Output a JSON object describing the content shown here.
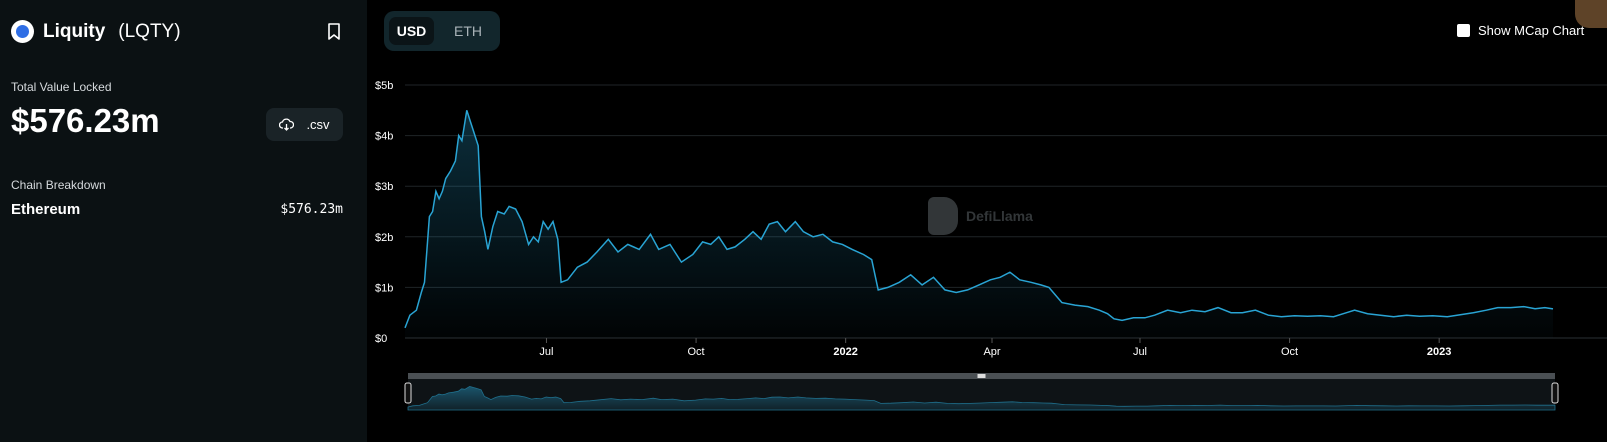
{
  "protocol": {
    "name": "Liquity",
    "symbol": "(LQTY)"
  },
  "tvl": {
    "label": "Total Value Locked",
    "value": "$576.23m"
  },
  "csv_button": {
    "label": ".csv"
  },
  "chain_breakdown": {
    "label": "Chain Breakdown",
    "items": [
      {
        "name": "Ethereum",
        "value": "$576.23m"
      }
    ]
  },
  "currency_toggle": {
    "options": [
      "USD",
      "ETH"
    ],
    "selected": "USD"
  },
  "mcap_toggle": {
    "label": "Show MCap Chart",
    "checked": false
  },
  "watermark": {
    "text": "DefiLlama"
  },
  "colors": {
    "line": "#29a4d4",
    "sidebar_bg": "#0b1113",
    "page_bg": "#000000"
  },
  "chart_data": {
    "type": "area",
    "series": [
      {
        "points": [
          [
            "2021-04-05",
            0.2
          ],
          [
            "2021-04-08",
            0.45
          ],
          [
            "2021-04-12",
            0.55
          ],
          [
            "2021-04-15",
            0.9
          ],
          [
            "2021-04-17",
            1.1
          ],
          [
            "2021-04-20",
            2.4
          ],
          [
            "2021-04-22",
            2.5
          ],
          [
            "2021-04-24",
            2.9
          ],
          [
            "2021-04-26",
            2.75
          ],
          [
            "2021-04-28",
            2.9
          ],
          [
            "2021-04-30",
            3.15
          ],
          [
            "2021-05-03",
            3.3
          ],
          [
            "2021-05-06",
            3.5
          ],
          [
            "2021-05-08",
            4.0
          ],
          [
            "2021-05-10",
            3.9
          ],
          [
            "2021-05-13",
            4.5
          ],
          [
            "2021-05-15",
            4.3
          ],
          [
            "2021-05-17",
            4.1
          ],
          [
            "2021-05-20",
            3.8
          ],
          [
            "2021-05-22",
            2.4
          ],
          [
            "2021-05-24",
            2.1
          ],
          [
            "2021-05-26",
            1.75
          ],
          [
            "2021-05-29",
            2.2
          ],
          [
            "2021-06-01",
            2.5
          ],
          [
            "2021-06-05",
            2.45
          ],
          [
            "2021-06-08",
            2.6
          ],
          [
            "2021-06-12",
            2.55
          ],
          [
            "2021-06-16",
            2.3
          ],
          [
            "2021-06-20",
            1.85
          ],
          [
            "2021-06-23",
            2.0
          ],
          [
            "2021-06-26",
            1.9
          ],
          [
            "2021-06-29",
            2.3
          ],
          [
            "2021-07-02",
            2.15
          ],
          [
            "2021-07-05",
            2.3
          ],
          [
            "2021-07-08",
            1.95
          ],
          [
            "2021-07-10",
            1.1
          ],
          [
            "2021-07-14",
            1.15
          ],
          [
            "2021-07-20",
            1.4
          ],
          [
            "2021-07-26",
            1.5
          ],
          [
            "2021-08-01",
            1.7
          ],
          [
            "2021-08-08",
            1.95
          ],
          [
            "2021-08-14",
            1.7
          ],
          [
            "2021-08-20",
            1.85
          ],
          [
            "2021-08-27",
            1.75
          ],
          [
            "2021-09-03",
            2.05
          ],
          [
            "2021-09-08",
            1.75
          ],
          [
            "2021-09-15",
            1.85
          ],
          [
            "2021-09-22",
            1.5
          ],
          [
            "2021-09-29",
            1.65
          ],
          [
            "2021-10-05",
            1.9
          ],
          [
            "2021-10-10",
            1.85
          ],
          [
            "2021-10-15",
            2.0
          ],
          [
            "2021-10-20",
            1.75
          ],
          [
            "2021-10-25",
            1.8
          ],
          [
            "2021-10-31",
            1.95
          ],
          [
            "2021-11-05",
            2.1
          ],
          [
            "2021-11-10",
            1.95
          ],
          [
            "2021-11-15",
            2.25
          ],
          [
            "2021-11-20",
            2.3
          ],
          [
            "2021-11-25",
            2.1
          ],
          [
            "2021-12-01",
            2.3
          ],
          [
            "2021-12-06",
            2.1
          ],
          [
            "2021-12-12",
            2.0
          ],
          [
            "2021-12-18",
            2.05
          ],
          [
            "2021-12-24",
            1.9
          ],
          [
            "2021-12-30",
            1.85
          ],
          [
            "2022-01-05",
            1.75
          ],
          [
            "2022-01-12",
            1.65
          ],
          [
            "2022-01-17",
            1.55
          ],
          [
            "2022-01-21",
            0.95
          ],
          [
            "2022-01-27",
            1.0
          ],
          [
            "2022-02-03",
            1.1
          ],
          [
            "2022-02-10",
            1.25
          ],
          [
            "2022-02-17",
            1.05
          ],
          [
            "2022-02-24",
            1.2
          ],
          [
            "2022-03-03",
            0.95
          ],
          [
            "2022-03-10",
            0.9
          ],
          [
            "2022-03-17",
            0.95
          ],
          [
            "2022-03-24",
            1.05
          ],
          [
            "2022-03-31",
            1.15
          ],
          [
            "2022-04-06",
            1.2
          ],
          [
            "2022-04-12",
            1.3
          ],
          [
            "2022-04-18",
            1.15
          ],
          [
            "2022-04-25",
            1.1
          ],
          [
            "2022-05-01",
            1.05
          ],
          [
            "2022-05-06",
            1.0
          ],
          [
            "2022-05-10",
            0.85
          ],
          [
            "2022-05-14",
            0.7
          ],
          [
            "2022-05-22",
            0.65
          ],
          [
            "2022-05-30",
            0.62
          ],
          [
            "2022-06-06",
            0.55
          ],
          [
            "2022-06-11",
            0.48
          ],
          [
            "2022-06-15",
            0.38
          ],
          [
            "2022-06-20",
            0.35
          ],
          [
            "2022-06-27",
            0.4
          ],
          [
            "2022-07-04",
            0.4
          ],
          [
            "2022-07-10",
            0.45
          ],
          [
            "2022-07-18",
            0.55
          ],
          [
            "2022-07-26",
            0.5
          ],
          [
            "2022-08-02",
            0.55
          ],
          [
            "2022-08-10",
            0.52
          ],
          [
            "2022-08-18",
            0.6
          ],
          [
            "2022-08-26",
            0.5
          ],
          [
            "2022-09-02",
            0.5
          ],
          [
            "2022-09-10",
            0.55
          ],
          [
            "2022-09-18",
            0.45
          ],
          [
            "2022-09-26",
            0.42
          ],
          [
            "2022-10-04",
            0.44
          ],
          [
            "2022-10-12",
            0.43
          ],
          [
            "2022-10-20",
            0.44
          ],
          [
            "2022-10-28",
            0.42
          ],
          [
            "2022-11-05",
            0.5
          ],
          [
            "2022-11-10",
            0.55
          ],
          [
            "2022-11-18",
            0.48
          ],
          [
            "2022-11-26",
            0.45
          ],
          [
            "2022-12-04",
            0.42
          ],
          [
            "2022-12-12",
            0.45
          ],
          [
            "2022-12-20",
            0.43
          ],
          [
            "2022-12-28",
            0.44
          ],
          [
            "2023-01-06",
            0.42
          ],
          [
            "2023-01-14",
            0.46
          ],
          [
            "2023-01-22",
            0.5
          ],
          [
            "2023-01-30",
            0.55
          ],
          [
            "2023-02-06",
            0.6
          ],
          [
            "2023-02-14",
            0.6
          ],
          [
            "2023-02-22",
            0.62
          ],
          [
            "2023-03-01",
            0.58
          ],
          [
            "2023-03-07",
            0.6
          ],
          [
            "2023-03-12",
            0.576
          ]
        ]
      }
    ],
    "x_range": [
      "2021-04-05",
      "2023-03-12"
    ],
    "ylim": [
      0,
      5
    ],
    "y_ticks": [
      {
        "value": 0,
        "label": "$0"
      },
      {
        "value": 1,
        "label": "$1b"
      },
      {
        "value": 2,
        "label": "$2b"
      },
      {
        "value": 3,
        "label": "$3b"
      },
      {
        "value": 4,
        "label": "$4b"
      },
      {
        "value": 5,
        "label": "$5b"
      }
    ],
    "x_ticks": [
      {
        "date": "2021-07-01",
        "label": "Jul",
        "bold": false
      },
      {
        "date": "2021-10-01",
        "label": "Oct",
        "bold": false
      },
      {
        "date": "2022-01-01",
        "label": "2022",
        "bold": true
      },
      {
        "date": "2022-04-01",
        "label": "Apr",
        "bold": false
      },
      {
        "date": "2022-07-01",
        "label": "Jul",
        "bold": false
      },
      {
        "date": "2022-10-01",
        "label": "Oct",
        "bold": false
      },
      {
        "date": "2023-01-01",
        "label": "2023",
        "bold": true
      }
    ],
    "grid": true,
    "legend": false
  }
}
